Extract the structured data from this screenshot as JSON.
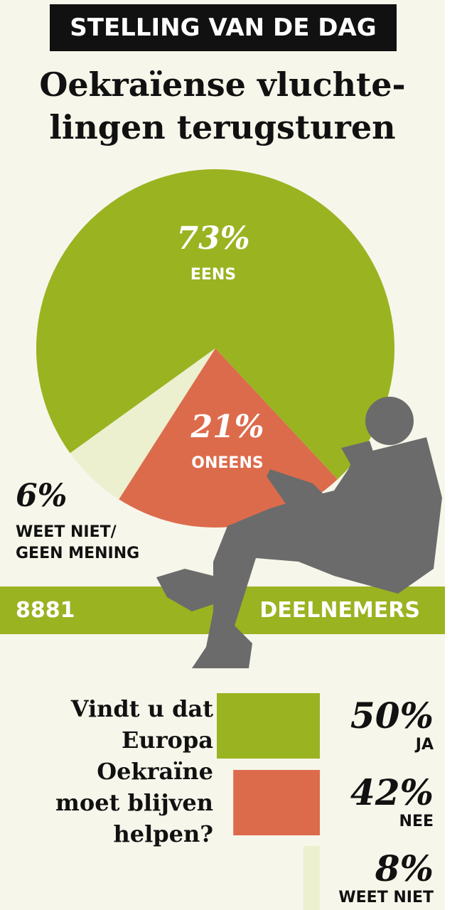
{
  "header": "STELLING VAN DE DAG",
  "chart_data": [
    {
      "type": "pie",
      "title_lines": [
        "Oekraïense vluchte-",
        "lingen terugsturen"
      ],
      "categories": [
        "EENS",
        "ONEENS",
        "WEET NIET/ GEEN MENING"
      ],
      "values": [
        73,
        21,
        6
      ],
      "value_labels": [
        "73%",
        "21%",
        "6%"
      ],
      "colors": [
        "#9ab321",
        "#dc6b4c",
        "#ecf0cf"
      ],
      "participants": "8881",
      "participants_label": "DEELNEMERS"
    },
    {
      "type": "bar",
      "title": "Vindt u dat Europa Oekraïne moet blijven helpen?",
      "categories": [
        "JA",
        "NEE",
        "WEET NIET"
      ],
      "values": [
        50,
        42,
        8
      ],
      "value_labels": [
        "50%",
        "42%",
        "8%"
      ],
      "colors": [
        "#9ab321",
        "#dc6b4c",
        "#ecf0cf"
      ]
    }
  ]
}
